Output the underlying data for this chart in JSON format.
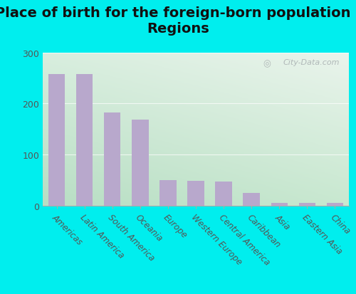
{
  "title": "Place of birth for the foreign-born population -\nRegions",
  "categories": [
    "Americas",
    "Latin America",
    "South America",
    "Oceania",
    "Europe",
    "Western Europe",
    "Central America",
    "Caribbean",
    "Asia",
    "Eastern Asia",
    "China"
  ],
  "values": [
    258,
    257,
    182,
    168,
    50,
    49,
    47,
    25,
    5,
    5,
    5
  ],
  "bar_color": "#b8a8cc",
  "background_color": "#00eeee",
  "grad_top_left": "#c8e8d8",
  "grad_top_right": "#e8f4ee",
  "grad_bottom_left": "#b8e0c8",
  "grad_bottom_right": "#d8eede",
  "ylim": [
    0,
    300
  ],
  "yticks": [
    0,
    100,
    200,
    300
  ],
  "title_fontsize": 14,
  "tick_fontsize": 8.5,
  "watermark_text": "City-Data.com"
}
